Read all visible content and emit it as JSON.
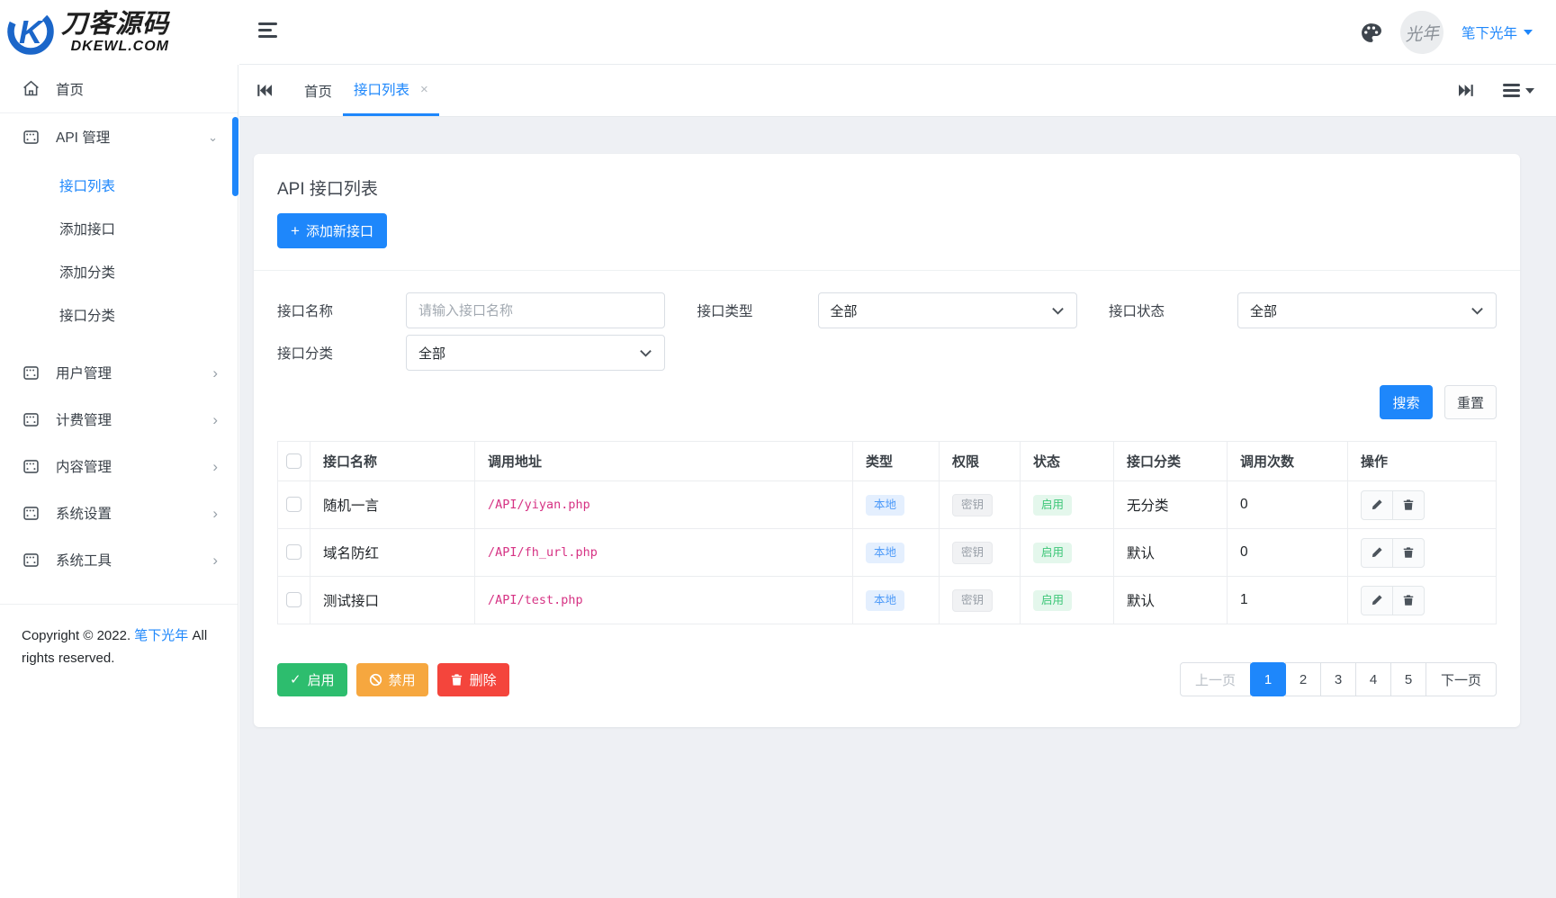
{
  "brand": {
    "title": "刀客源码",
    "domain": "DKEWL.COM"
  },
  "header": {
    "user_name": "笔下光年",
    "avatar_text": "光年"
  },
  "glyphs": {
    "plus": "+",
    "close": "×",
    "chev_right": "›",
    "chev_down": "⌄",
    "check": "✓"
  },
  "sidebar": {
    "items": [
      {
        "id": "home",
        "icon": "home",
        "label": "首页"
      },
      {
        "id": "api",
        "icon": "module",
        "label": "API 管理",
        "expanded": true,
        "children": [
          {
            "label": "接口列表",
            "active": true
          },
          {
            "label": "添加接口"
          },
          {
            "label": "添加分类"
          },
          {
            "label": "接口分类"
          }
        ]
      },
      {
        "id": "users",
        "icon": "module",
        "label": "用户管理"
      },
      {
        "id": "billing",
        "icon": "module",
        "label": "计费管理"
      },
      {
        "id": "content",
        "icon": "module",
        "label": "内容管理"
      },
      {
        "id": "settings",
        "icon": "module",
        "label": "系统设置"
      },
      {
        "id": "tools",
        "icon": "module",
        "label": "系统工具"
      }
    ],
    "copyright_prefix": "Copyright © 2022.",
    "copyright_link": "笔下光年",
    "copyright_suffix": "All rights reserved."
  },
  "tabbar": {
    "tabs": [
      {
        "label": "首页"
      },
      {
        "label": "接口列表",
        "active": true
      }
    ]
  },
  "page": {
    "title": "API 接口列表",
    "add_button": "添加新接口",
    "filters": {
      "name_label": "接口名称",
      "name_placeholder": "请输入接口名称",
      "type_label": "接口类型",
      "type_value": "全部",
      "status_label": "接口状态",
      "status_value": "全部",
      "category_label": "接口分类",
      "category_value": "全部",
      "search": "搜索",
      "reset": "重置"
    },
    "table": {
      "headers": [
        "接口名称",
        "调用地址",
        "类型",
        "权限",
        "状态",
        "接口分类",
        "调用次数",
        "操作"
      ],
      "rows": [
        {
          "name": "随机一言",
          "url": "/API/yiyan.php",
          "type": "本地",
          "perm": "密钥",
          "status": "启用",
          "category": "无分类",
          "calls": "0"
        },
        {
          "name": "域名防红",
          "url": "/API/fh_url.php",
          "type": "本地",
          "perm": "密钥",
          "status": "启用",
          "category": "默认",
          "calls": "0"
        },
        {
          "name": "测试接口",
          "url": "/API/test.php",
          "type": "本地",
          "perm": "密钥",
          "status": "启用",
          "category": "默认",
          "calls": "1"
        }
      ]
    },
    "bulk_actions": {
      "enable": "启用",
      "disable": "禁用",
      "delete": "删除"
    },
    "pagination": {
      "prev": "上一页",
      "pages": [
        "1",
        "2",
        "3",
        "4",
        "5"
      ],
      "active": "1",
      "next": "下一页"
    }
  },
  "colors": {
    "primary": "#1e87fb",
    "success": "#2dbd6e",
    "warning": "#f6a73f",
    "danger": "#f4453c",
    "code_pink": "#d63384"
  }
}
